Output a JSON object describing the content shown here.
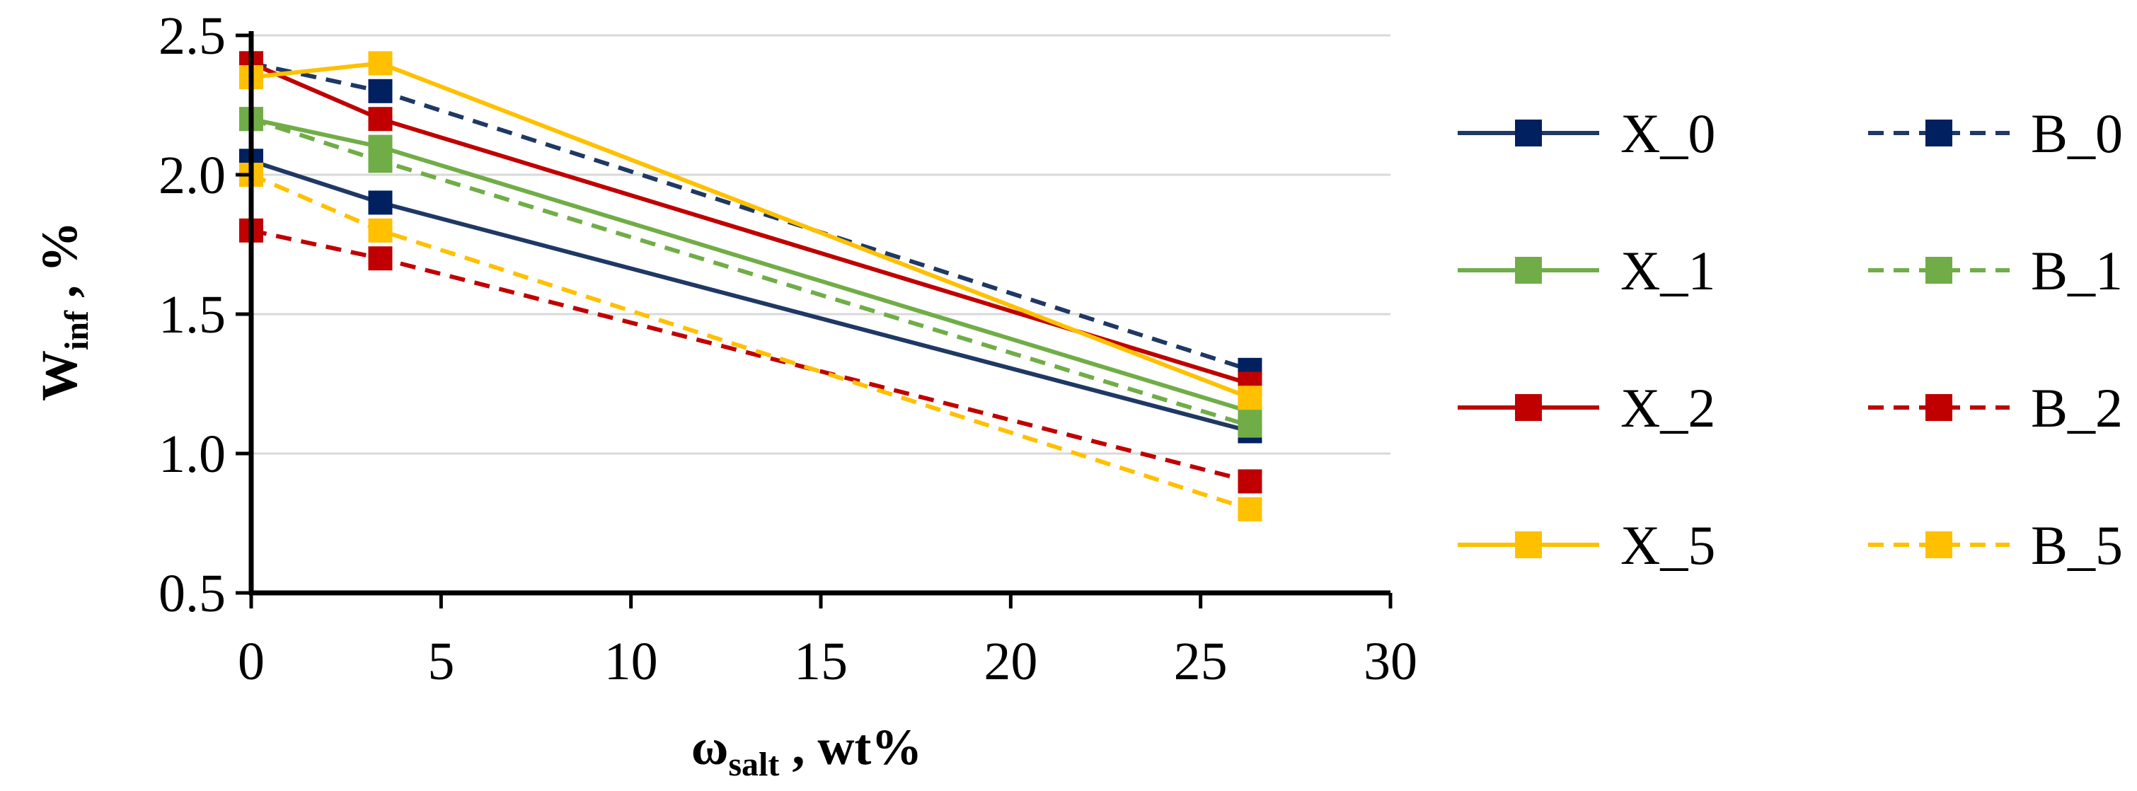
{
  "chart_data": {
    "type": "line",
    "title": "",
    "xlabel": {
      "main": "ω",
      "sub": "salt",
      "suffix": " , wt%"
    },
    "ylabel": {
      "main": "W",
      "sub": "inf",
      "suffix": " , %"
    },
    "xlim": [
      0,
      30
    ],
    "ylim": [
      0.5,
      2.5
    ],
    "xticks": [
      "0",
      "5",
      "10",
      "15",
      "20",
      "25",
      "30"
    ],
    "yticks": [
      "0.5",
      "1.0",
      "1.5",
      "2.0",
      "2.5"
    ],
    "grid": "horizontal",
    "legend_position": "right",
    "x": [
      0,
      3.4,
      26.3
    ],
    "series": [
      {
        "name": "X_0",
        "color": "#1F3864",
        "marker": "#002060",
        "dash": "solid",
        "values": [
          2.05,
          1.9,
          1.08
        ]
      },
      {
        "name": "B_0",
        "color": "#1F3864",
        "marker": "#002060",
        "dash": "dashed",
        "values": [
          2.4,
          2.3,
          1.3
        ]
      },
      {
        "name": "X_1",
        "color": "#70AD47",
        "marker": "#70AD47",
        "dash": "solid",
        "values": [
          2.2,
          2.1,
          1.15
        ]
      },
      {
        "name": "B_1",
        "color": "#70AD47",
        "marker": "#70AD47",
        "dash": "dashed",
        "values": [
          2.2,
          2.05,
          1.1
        ]
      },
      {
        "name": "X_2",
        "color": "#C00000",
        "marker": "#C00000",
        "dash": "solid",
        "values": [
          2.4,
          2.2,
          1.25
        ]
      },
      {
        "name": "B_2",
        "color": "#C00000",
        "marker": "#C00000",
        "dash": "dashed",
        "values": [
          1.8,
          1.7,
          0.9
        ]
      },
      {
        "name": "X_5",
        "color": "#FFC000",
        "marker": "#FFC000",
        "dash": "solid",
        "values": [
          2.35,
          2.4,
          1.2
        ]
      },
      {
        "name": "B_5",
        "color": "#FFC000",
        "marker": "#FFC000",
        "dash": "dashed",
        "values": [
          2.0,
          1.8,
          0.8
        ]
      }
    ]
  }
}
